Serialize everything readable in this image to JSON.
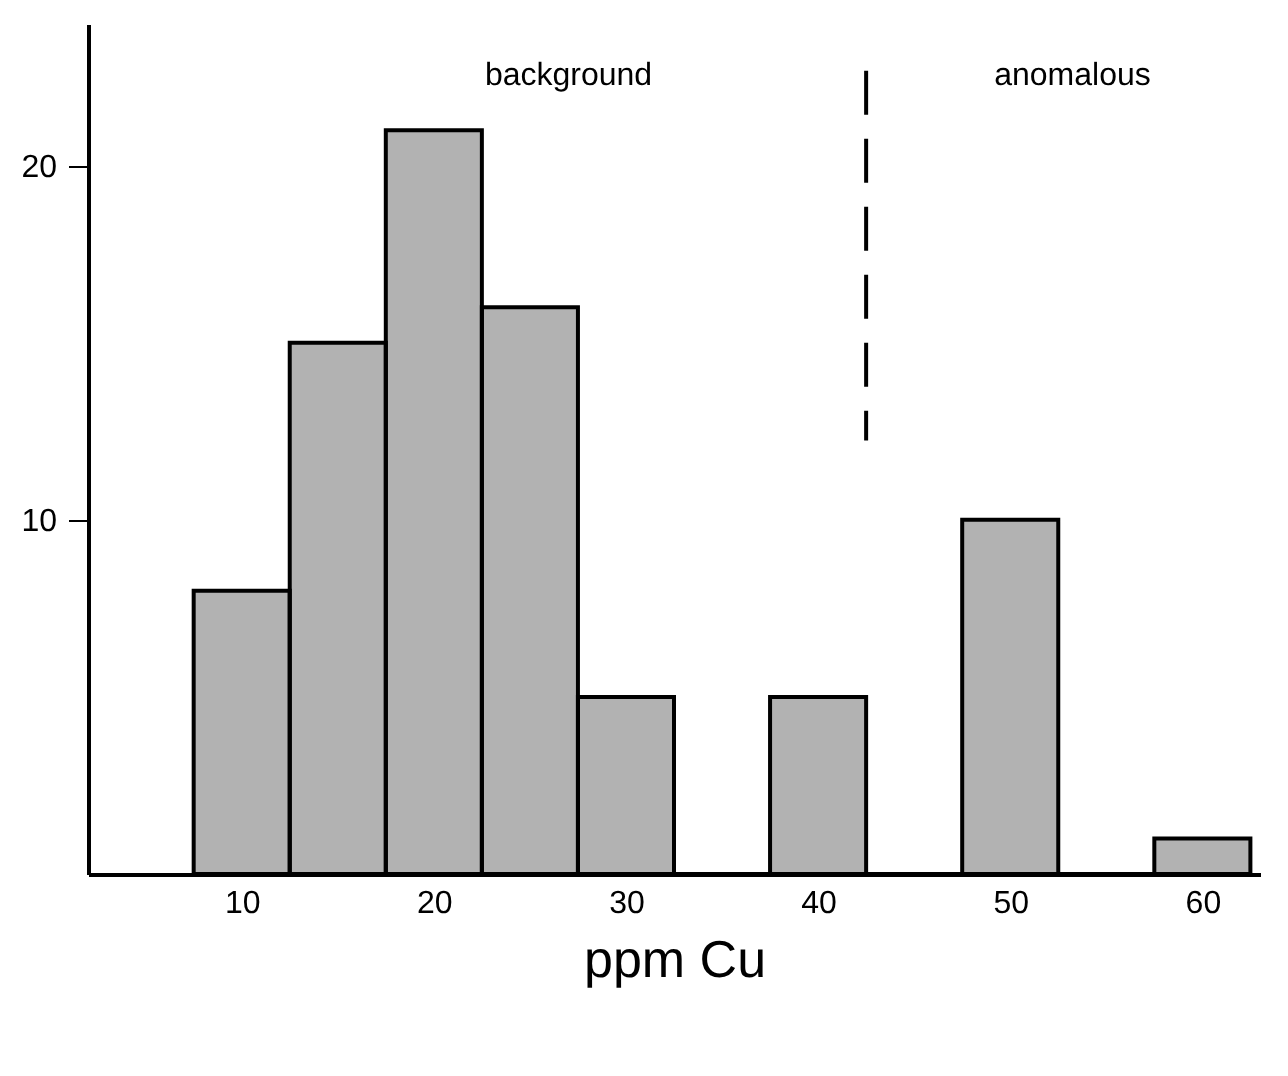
{
  "chart_data": {
    "type": "histogram",
    "xlabel": "ppm Cu",
    "bins": [
      7.5,
      12.5,
      17.5,
      22.5,
      27.5,
      32.5,
      37.5,
      42.5,
      47.5,
      52.5,
      57.5,
      62.5
    ],
    "values": [
      8,
      15,
      21,
      16,
      5,
      0,
      5,
      0,
      10,
      0,
      1
    ],
    "color": "#000000",
    "xlim": [
      2,
      63
    ],
    "xticks": [
      10,
      20,
      30,
      40,
      50,
      60
    ],
    "ylim": [
      0,
      24
    ],
    "yticks": [
      10,
      20
    ],
    "grid": false,
    "ref_lines": [
      {
        "axis": "x",
        "value": 42.5,
        "line_style": "dashed"
      }
    ],
    "annotations": [
      "background",
      "anomalous"
    ]
  }
}
